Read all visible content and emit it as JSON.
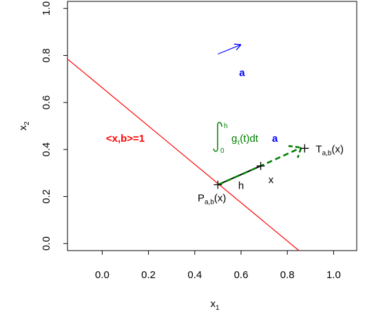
{
  "chart_data": {
    "type": "line",
    "title": "",
    "xlabel": "x",
    "xlabel_sub": "1",
    "ylabel": "x",
    "ylabel_sub": "2",
    "xlim": [
      -0.15,
      1.1
    ],
    "ylim": [
      -0.03,
      1.03
    ],
    "xticks": [
      0.0,
      0.2,
      0.4,
      0.6,
      0.8,
      1.0
    ],
    "xtick_labels": [
      "0.0",
      "0.2",
      "0.4",
      "0.6",
      "0.8",
      "1.0"
    ],
    "yticks": [
      0.0,
      0.2,
      0.4,
      0.6,
      0.8,
      1.0
    ],
    "ytick_labels": [
      "0.0",
      "0.2",
      "0.4",
      "0.6",
      "0.8",
      "1.0"
    ],
    "grid": false,
    "line_constraint": {
      "label": "<x,b>=1",
      "color": "#ff0000",
      "points": [
        [
          -0.15,
          0.785
        ],
        [
          0.85,
          -0.03
        ]
      ]
    },
    "direction_arrow": {
      "label": "a",
      "color": "#0000ff",
      "from": [
        0.5,
        0.806
      ],
      "to": [
        0.6,
        0.846
      ]
    },
    "segment_h": {
      "label": "h",
      "color": "#000000",
      "from": [
        0.5,
        0.25
      ],
      "to": [
        0.685,
        0.33
      ]
    },
    "flow_path": {
      "color": "#008000",
      "points": [
        [
          0.5,
          0.25
        ],
        [
          0.685,
          0.33
        ],
        [
          0.86,
          0.408
        ]
      ],
      "arrowhead": [
        [
          0.805,
          0.415
        ],
        [
          0.86,
          0.408
        ],
        [
          0.845,
          0.365
        ]
      ]
    },
    "points": [
      {
        "label": "P",
        "sub": "a,b",
        "suffix": "(x)",
        "x": 0.5,
        "y": 0.25
      },
      {
        "label": "x",
        "x": 0.685,
        "y": 0.33
      },
      {
        "label": "T",
        "sub": "a,b",
        "suffix": "(x)",
        "x": 0.875,
        "y": 0.405
      }
    ],
    "integral_annotation": {
      "color": "#008000",
      "upper": "h",
      "lower": "0",
      "g": "g",
      "g_sub": "τ",
      "body": "(t)dt",
      "vector": "a",
      "vector_color": "#0000ff"
    }
  }
}
